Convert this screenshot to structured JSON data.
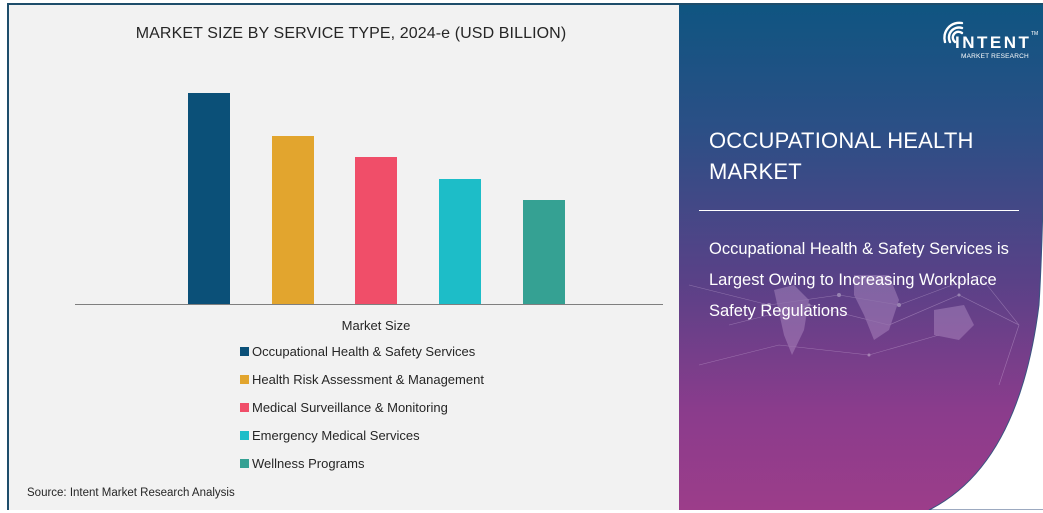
{
  "chart_data": {
    "type": "bar",
    "title": "MARKET SIZE BY SERVICE TYPE, 2024-e (USD BILLION)",
    "xlabel": "Market Size",
    "ylabel": "",
    "categories": [
      "Market Size"
    ],
    "series": [
      {
        "name": "Occupational Health & Safety Services",
        "values": [
          212
        ],
        "color": "#0b5078"
      },
      {
        "name": "Health Risk Assessment & Management",
        "values": [
          169
        ],
        "color": "#e2a52e"
      },
      {
        "name": "Medical Surveillance & Monitoring",
        "values": [
          148
        ],
        "color": "#f04e69"
      },
      {
        "name": "Emergency Medical Services",
        "values": [
          126
        ],
        "color": "#1dbdc8"
      },
      {
        "name": "Wellness Programs",
        "values": [
          105
        ],
        "color": "#35a193"
      }
    ],
    "value_note": "no y-axis shown; values are relative bar heights",
    "ylim": [
      0,
      240
    ],
    "grid": false,
    "legend_position": "bottom"
  },
  "chart": {
    "title": "MARKET SIZE BY SERVICE TYPE, 2024-e (USD BILLION)",
    "xlabel": "Market Size",
    "legend": [
      {
        "label": "Occupational Health & Safety Services",
        "color": "#0b5078"
      },
      {
        "label": "Health Risk Assessment & Management",
        "color": "#e2a52e"
      },
      {
        "label": "Medical Surveillance & Monitoring",
        "color": "#f04e69"
      },
      {
        "label": "Emergency Medical Services",
        "color": "#1dbdc8"
      },
      {
        "label": "Wellness Programs",
        "color": "#35a193"
      }
    ]
  },
  "source": "Source:  Intent Market Research Analysis",
  "panel": {
    "logo_name": "INTENT",
    "logo_sub": "MARKET RESEARCH",
    "logo_tm": "TM",
    "title": "OCCUPATIONAL HEALTH MARKET",
    "description": "Occupational Health & Safety Services is Largest Owing to Increasing Workplace Safety Regulations"
  }
}
